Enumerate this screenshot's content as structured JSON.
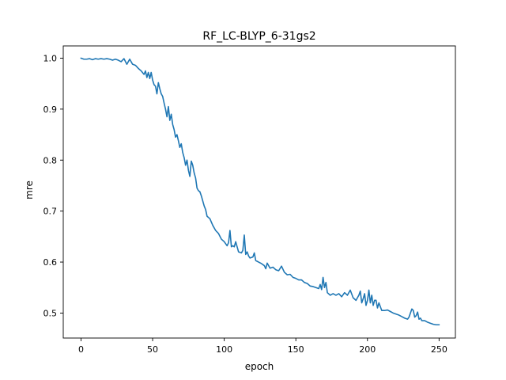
{
  "chart_data": {
    "type": "line",
    "title": "RF_LC-BLYP_6-31gs2",
    "xlabel": "epoch",
    "ylabel": "mre",
    "xlim": [
      -12.4,
      261.4
    ],
    "ylim": [
      0.451,
      1.024
    ],
    "xticks": [
      0,
      50,
      100,
      150,
      200,
      250
    ],
    "yticks": [
      0.5,
      0.6,
      0.7,
      0.8,
      0.9,
      1.0
    ],
    "xtick_labels": [
      "0",
      "50",
      "100",
      "150",
      "200",
      "250"
    ],
    "ytick_labels": [
      "0.5",
      "0.6",
      "0.7",
      "0.8",
      "0.9",
      "1.0"
    ],
    "grid": false,
    "line_color": "#1f77b4",
    "series": [
      {
        "values": [
          [
            0,
            1.0
          ],
          [
            2,
            0.998
          ],
          [
            4,
            0.998
          ],
          [
            6,
            0.999
          ],
          [
            8,
            0.997
          ],
          [
            10,
            0.999
          ],
          [
            12,
            0.998
          ],
          [
            14,
            0.999
          ],
          [
            16,
            0.998
          ],
          [
            18,
            0.999
          ],
          [
            20,
            0.998
          ],
          [
            22,
            0.996
          ],
          [
            24,
            0.998
          ],
          [
            26,
            0.996
          ],
          [
            28,
            0.993
          ],
          [
            30,
            0.999
          ],
          [
            32,
            0.988
          ],
          [
            34,
            0.998
          ],
          [
            36,
            0.988
          ],
          [
            38,
            0.986
          ],
          [
            40,
            0.98
          ],
          [
            42,
            0.975
          ],
          [
            44,
            0.968
          ],
          [
            45,
            0.975
          ],
          [
            46,
            0.962
          ],
          [
            47,
            0.972
          ],
          [
            48,
            0.96
          ],
          [
            49,
            0.972
          ],
          [
            50,
            0.957
          ],
          [
            51,
            0.948
          ],
          [
            52,
            0.945
          ],
          [
            53,
            0.93
          ],
          [
            54,
            0.952
          ],
          [
            55,
            0.94
          ],
          [
            56,
            0.93
          ],
          [
            57,
            0.925
          ],
          [
            58,
            0.912
          ],
          [
            59,
            0.9
          ],
          [
            60,
            0.885
          ],
          [
            61,
            0.905
          ],
          [
            62,
            0.878
          ],
          [
            63,
            0.89
          ],
          [
            64,
            0.87
          ],
          [
            65,
            0.86
          ],
          [
            66,
            0.845
          ],
          [
            67,
            0.85
          ],
          [
            68,
            0.838
          ],
          [
            69,
            0.825
          ],
          [
            70,
            0.832
          ],
          [
            71,
            0.815
          ],
          [
            72,
            0.805
          ],
          [
            73,
            0.79
          ],
          [
            74,
            0.8
          ],
          [
            75,
            0.78
          ],
          [
            76,
            0.768
          ],
          [
            77,
            0.798
          ],
          [
            78,
            0.79
          ],
          [
            79,
            0.775
          ],
          [
            80,
            0.765
          ],
          [
            81,
            0.745
          ],
          [
            82,
            0.74
          ],
          [
            83,
            0.738
          ],
          [
            84,
            0.73
          ],
          [
            85,
            0.72
          ],
          [
            86,
            0.71
          ],
          [
            87,
            0.703
          ],
          [
            88,
            0.69
          ],
          [
            90,
            0.685
          ],
          [
            92,
            0.672
          ],
          [
            94,
            0.662
          ],
          [
            96,
            0.656
          ],
          [
            98,
            0.645
          ],
          [
            100,
            0.64
          ],
          [
            102,
            0.632
          ],
          [
            103,
            0.638
          ],
          [
            104,
            0.662
          ],
          [
            105,
            0.63
          ],
          [
            106,
            0.632
          ],
          [
            107,
            0.63
          ],
          [
            108,
            0.64
          ],
          [
            110,
            0.62
          ],
          [
            112,
            0.618
          ],
          [
            113,
            0.623
          ],
          [
            114,
            0.653
          ],
          [
            115,
            0.615
          ],
          [
            116,
            0.62
          ],
          [
            117,
            0.612
          ],
          [
            118,
            0.608
          ],
          [
            120,
            0.61
          ],
          [
            121,
            0.618
          ],
          [
            122,
            0.603
          ],
          [
            124,
            0.6
          ],
          [
            126,
            0.597
          ],
          [
            128,
            0.593
          ],
          [
            129,
            0.587
          ],
          [
            130,
            0.598
          ],
          [
            132,
            0.588
          ],
          [
            134,
            0.59
          ],
          [
            136,
            0.585
          ],
          [
            138,
            0.583
          ],
          [
            140,
            0.592
          ],
          [
            142,
            0.58
          ],
          [
            144,
            0.575
          ],
          [
            146,
            0.576
          ],
          [
            148,
            0.57
          ],
          [
            150,
            0.568
          ],
          [
            152,
            0.565
          ],
          [
            154,
            0.565
          ],
          [
            156,
            0.56
          ],
          [
            158,
            0.558
          ],
          [
            160,
            0.553
          ],
          [
            162,
            0.552
          ],
          [
            164,
            0.55
          ],
          [
            166,
            0.548
          ],
          [
            167,
            0.556
          ],
          [
            168,
            0.546
          ],
          [
            169,
            0.57
          ],
          [
            170,
            0.55
          ],
          [
            171,
            0.56
          ],
          [
            172,
            0.54
          ],
          [
            174,
            0.535
          ],
          [
            176,
            0.538
          ],
          [
            178,
            0.535
          ],
          [
            180,
            0.538
          ],
          [
            182,
            0.532
          ],
          [
            184,
            0.54
          ],
          [
            186,
            0.535
          ],
          [
            188,
            0.545
          ],
          [
            190,
            0.53
          ],
          [
            192,
            0.525
          ],
          [
            194,
            0.535
          ],
          [
            195,
            0.543
          ],
          [
            196,
            0.52
          ],
          [
            197,
            0.528
          ],
          [
            198,
            0.538
          ],
          [
            199,
            0.515
          ],
          [
            200,
            0.525
          ],
          [
            201,
            0.545
          ],
          [
            202,
            0.52
          ],
          [
            203,
            0.535
          ],
          [
            204,
            0.515
          ],
          [
            205,
            0.525
          ],
          [
            206,
            0.525
          ],
          [
            207,
            0.51
          ],
          [
            208,
            0.52
          ],
          [
            210,
            0.505
          ],
          [
            212,
            0.505
          ],
          [
            214,
            0.506
          ],
          [
            216,
            0.503
          ],
          [
            218,
            0.5
          ],
          [
            220,
            0.498
          ],
          [
            222,
            0.496
          ],
          [
            224,
            0.493
          ],
          [
            226,
            0.49
          ],
          [
            228,
            0.488
          ],
          [
            229,
            0.492
          ],
          [
            230,
            0.5
          ],
          [
            231,
            0.508
          ],
          [
            232,
            0.505
          ],
          [
            233,
            0.492
          ],
          [
            234,
            0.495
          ],
          [
            235,
            0.502
          ],
          [
            236,
            0.488
          ],
          [
            237,
            0.49
          ],
          [
            238,
            0.485
          ],
          [
            240,
            0.485
          ],
          [
            242,
            0.482
          ],
          [
            244,
            0.48
          ],
          [
            246,
            0.478
          ],
          [
            248,
            0.477
          ],
          [
            250,
            0.477
          ]
        ]
      }
    ]
  }
}
